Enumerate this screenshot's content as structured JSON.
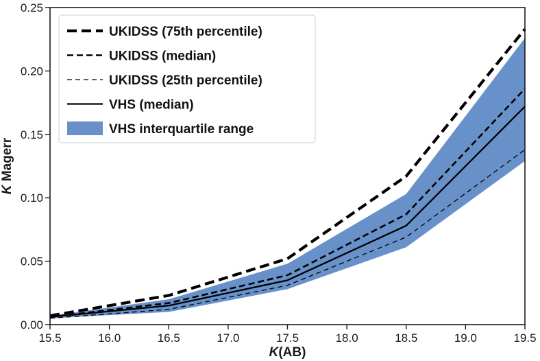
{
  "chart_data": {
    "type": "line",
    "title": "",
    "xlabel_italic": "K",
    "xlabel_rest": "(AB)",
    "ylabel_italic": "K",
    "ylabel_rest": " Magerr",
    "xlim": [
      15.5,
      19.5
    ],
    "ylim": [
      0.0,
      0.25
    ],
    "xticks": [
      15.5,
      16.0,
      16.5,
      17.0,
      17.5,
      18.0,
      18.5,
      19.0,
      19.5
    ],
    "xtick_labels": [
      "15.5",
      "16.0",
      "16.5",
      "17.0",
      "17.5",
      "18.0",
      "18.5",
      "19.0",
      "19.5"
    ],
    "yticks": [
      0.0,
      0.05,
      0.1,
      0.15,
      0.2,
      0.25
    ],
    "ytick_labels": [
      "0.00",
      "0.05",
      "0.10",
      "0.15",
      "0.20",
      "0.25"
    ],
    "grid": false,
    "legend_position": "top-left",
    "x": [
      15.5,
      16.5,
      17.5,
      18.5,
      19.5
    ],
    "series": [
      {
        "name": "UKIDSS (75th percentile)",
        "style": "dashed-thick",
        "values": [
          0.007,
          0.023,
          0.052,
          0.117,
          0.233
        ]
      },
      {
        "name": "UKIDSS (median)",
        "style": "dashed-medium",
        "values": [
          0.006,
          0.017,
          0.039,
          0.087,
          0.186
        ]
      },
      {
        "name": "UKIDSS (25th percentile)",
        "style": "dashed-thin",
        "values": [
          0.005,
          0.012,
          0.031,
          0.069,
          0.138
        ]
      },
      {
        "name": "VHS (median)",
        "style": "solid",
        "values": [
          0.006,
          0.015,
          0.035,
          0.078,
          0.172
        ]
      }
    ],
    "band": {
      "name": "VHS interquartile range",
      "color": "#6891c9",
      "upper": [
        0.007,
        0.02,
        0.048,
        0.103,
        0.226
      ],
      "lower": [
        0.005,
        0.01,
        0.028,
        0.061,
        0.129
      ]
    },
    "line_color": "#000000"
  }
}
